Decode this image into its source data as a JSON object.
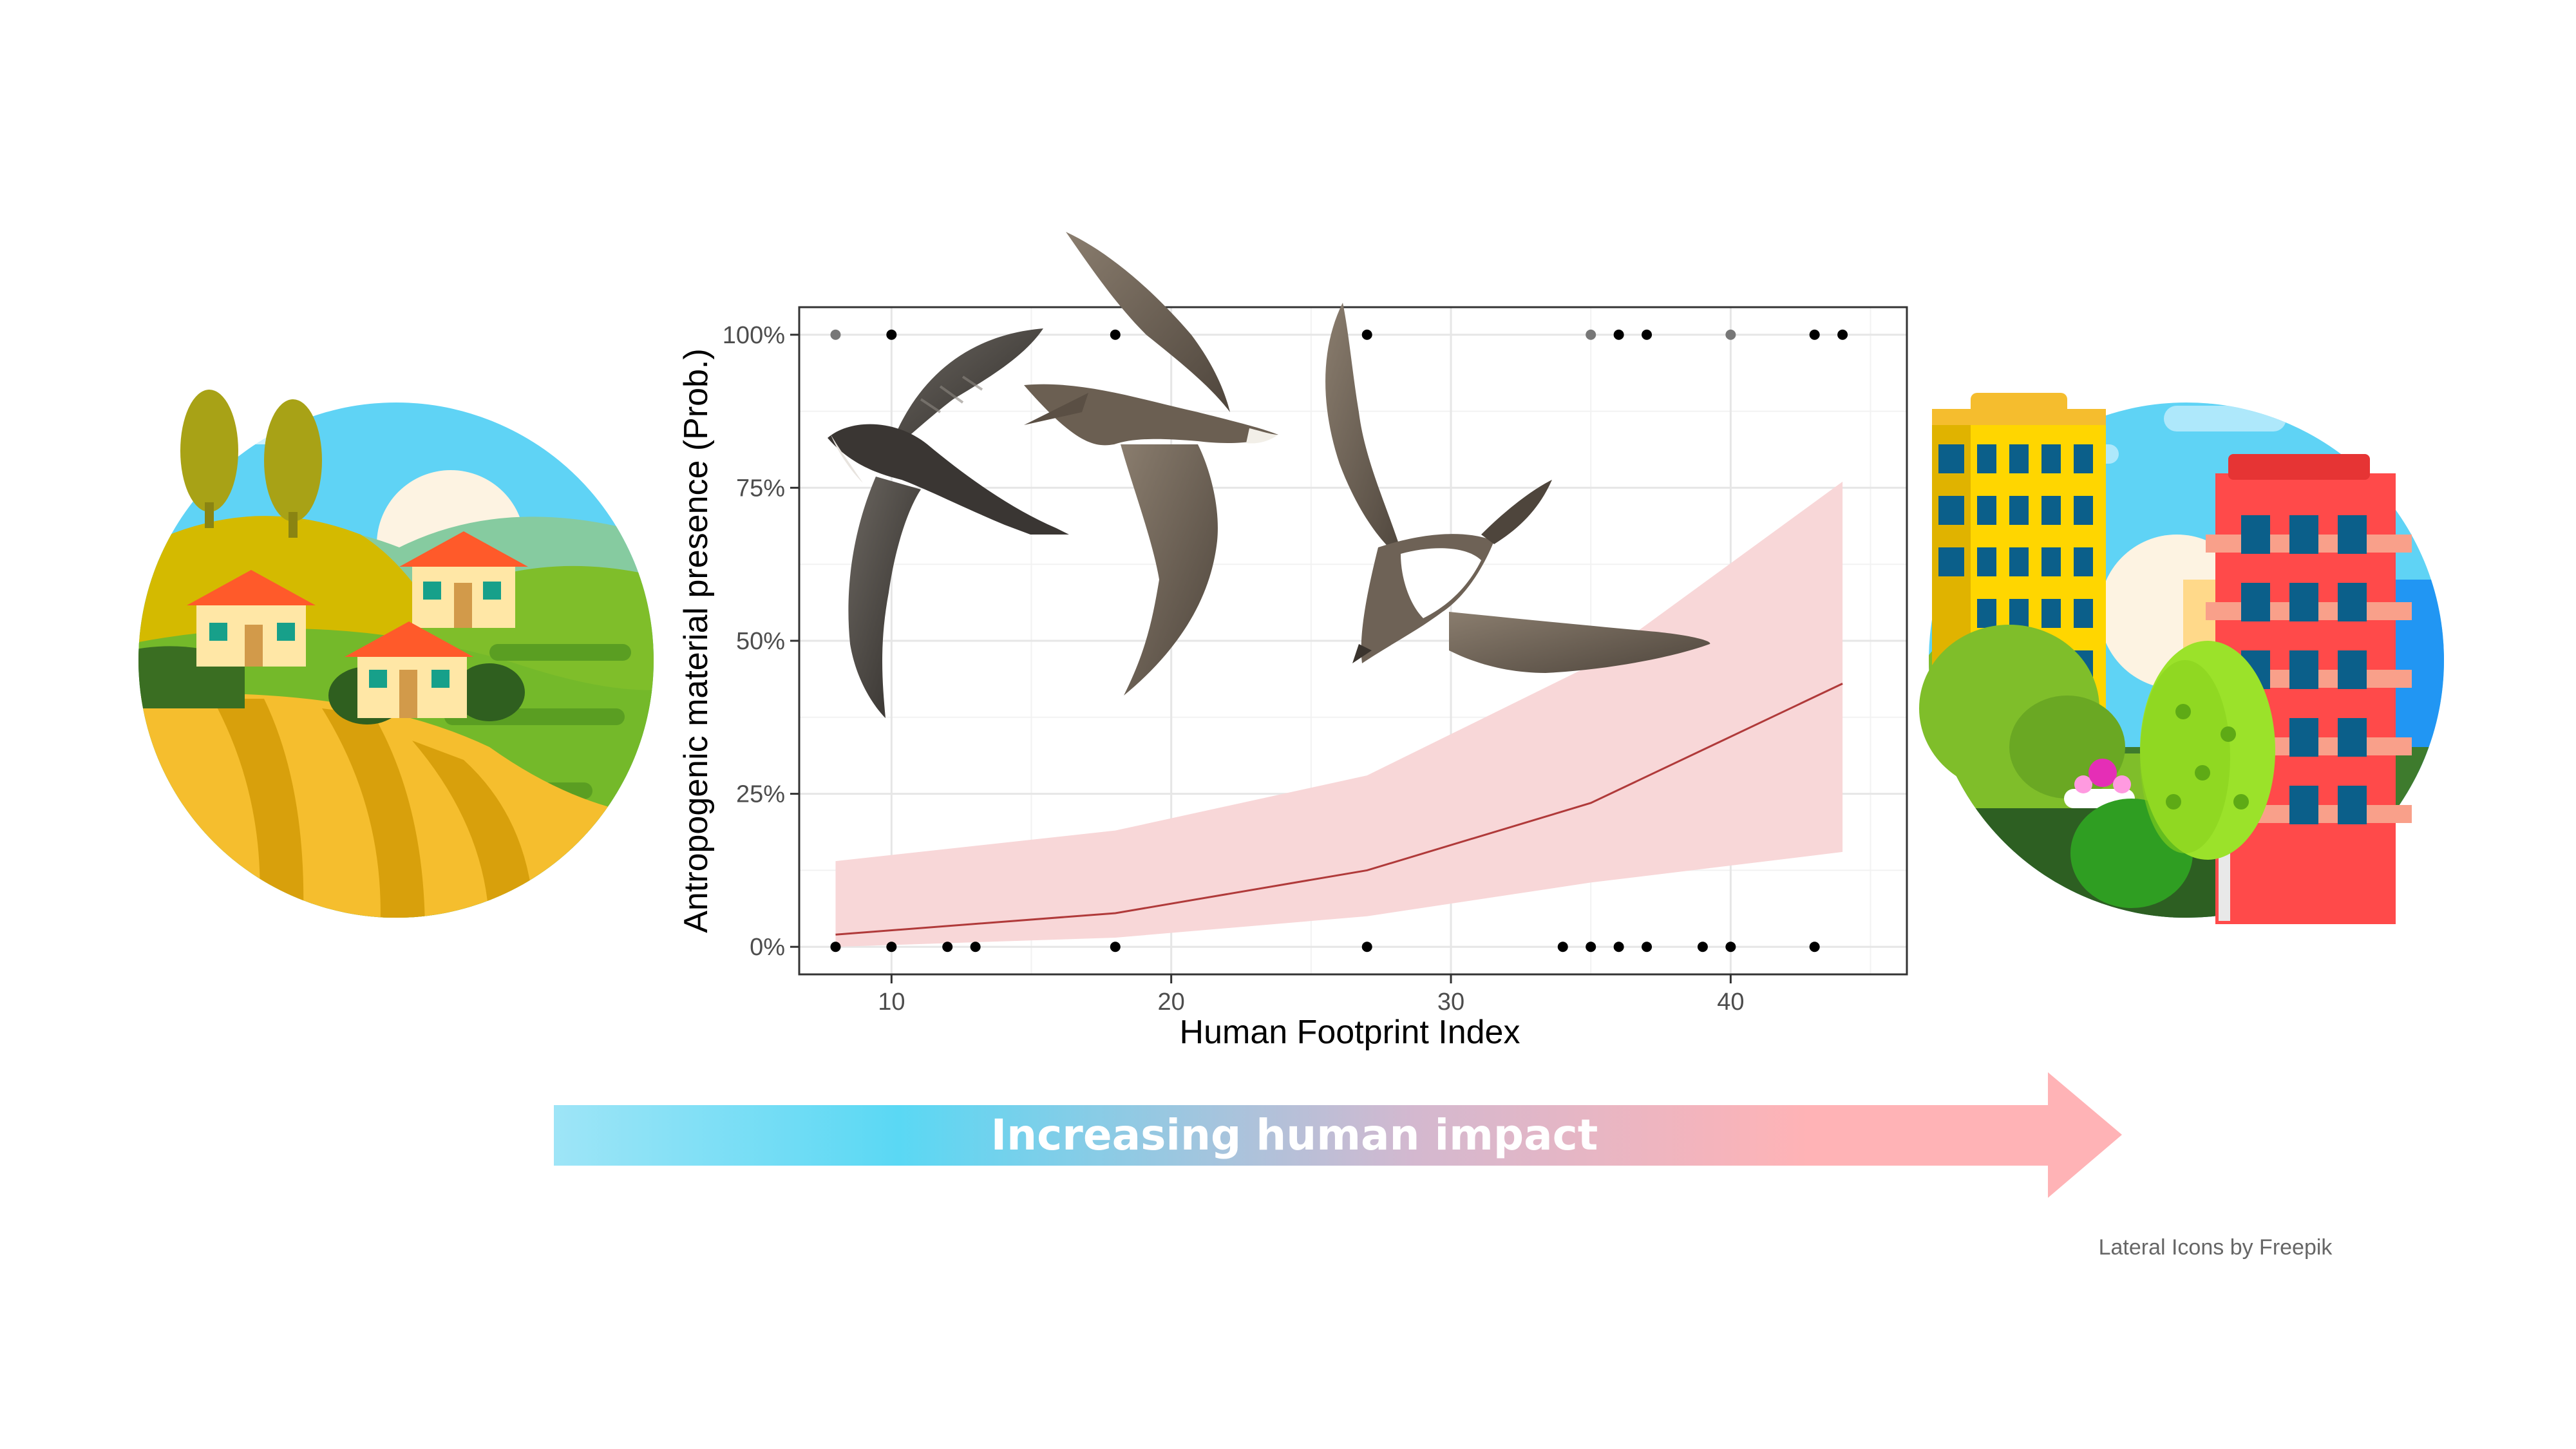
{
  "colors": {
    "ribbon": "#f8d7d8",
    "fit_line": "#b03a3a",
    "point": "#000000",
    "point_faded": "#777777",
    "arrow_start": "#9ee5f7",
    "arrow_mid": "#5ad8f4",
    "arrow_end": "#ffb3b6"
  },
  "icons": {
    "left": "rural-landscape-icon",
    "right": "city-buildings-icon",
    "birds": [
      "swift-bird-dark",
      "swift-bird-brown",
      "swift-bird-white-belly"
    ]
  },
  "banner": {
    "label": "Increasing human impact"
  },
  "credit": {
    "text": "Lateral Icons by Freepik"
  },
  "chart_data": {
    "type": "line",
    "xlabel": "Human Footprint Index",
    "ylabel": "Antropogenic material presence (Prob.)",
    "xlim": [
      6.7,
      46.3
    ],
    "ylim": [
      -0.045,
      1.045
    ],
    "x_ticks": [
      10,
      20,
      30,
      40
    ],
    "x_tick_labels": [
      "10",
      "20",
      "30",
      "40"
    ],
    "y_ticks": [
      0,
      0.25,
      0.5,
      0.75,
      1
    ],
    "y_tick_labels": [
      "0%",
      "25%",
      "50%",
      "75%",
      "100%"
    ],
    "grid": true,
    "fit": {
      "x": [
        8,
        18,
        27,
        35,
        44
      ],
      "y": [
        0.02,
        0.055,
        0.125,
        0.235,
        0.43
      ],
      "lower": [
        0.0,
        0.015,
        0.05,
        0.105,
        0.155
      ],
      "upper": [
        0.14,
        0.19,
        0.28,
        0.46,
        0.76
      ]
    },
    "points": [
      {
        "x": 8,
        "y": 1,
        "faded": true
      },
      {
        "x": 10,
        "y": 1,
        "faded": false
      },
      {
        "x": 18,
        "y": 1,
        "faded": false
      },
      {
        "x": 27,
        "y": 1,
        "faded": false
      },
      {
        "x": 35,
        "y": 1,
        "faded": true
      },
      {
        "x": 36,
        "y": 1,
        "faded": false
      },
      {
        "x": 37,
        "y": 1,
        "faded": false
      },
      {
        "x": 40,
        "y": 1,
        "faded": true
      },
      {
        "x": 43,
        "y": 1,
        "faded": false
      },
      {
        "x": 44,
        "y": 1,
        "faded": false
      },
      {
        "x": 8,
        "y": 0,
        "faded": false
      },
      {
        "x": 10,
        "y": 0,
        "faded": false
      },
      {
        "x": 12,
        "y": 0,
        "faded": false
      },
      {
        "x": 13,
        "y": 0,
        "faded": false
      },
      {
        "x": 18,
        "y": 0,
        "faded": false
      },
      {
        "x": 27,
        "y": 0,
        "faded": false
      },
      {
        "x": 34,
        "y": 0,
        "faded": false
      },
      {
        "x": 35,
        "y": 0,
        "faded": false
      },
      {
        "x": 36,
        "y": 0,
        "faded": false
      },
      {
        "x": 37,
        "y": 0,
        "faded": false
      },
      {
        "x": 39,
        "y": 0,
        "faded": false
      },
      {
        "x": 40,
        "y": 0,
        "faded": false
      },
      {
        "x": 43,
        "y": 0,
        "faded": false
      }
    ]
  }
}
